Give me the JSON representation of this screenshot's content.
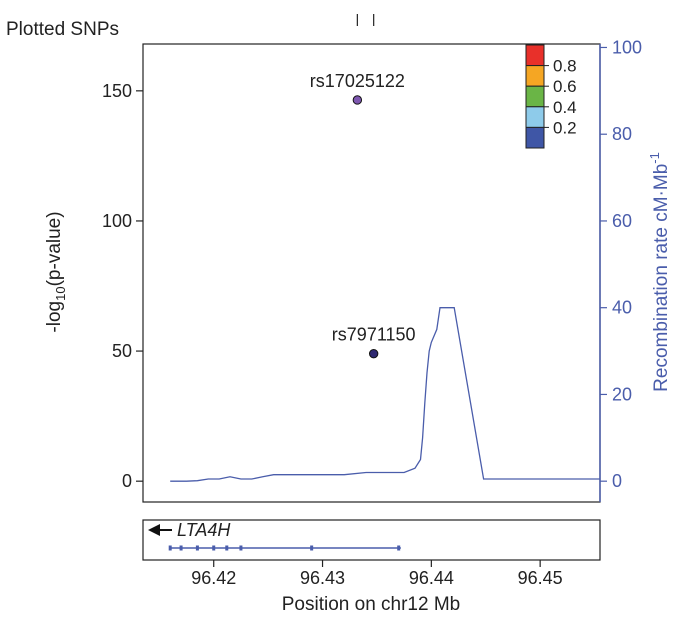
{
  "chart_data": {
    "type": "scatter",
    "title": "Plotted SNPs",
    "xlabel": "Position on chr12 Mb",
    "ylabel_prefix": "-log",
    "ylabel_sub": "10",
    "ylabel_suffix": "(p-value)",
    "y2label_main": "Recombination rate cM·Mb",
    "y2label_sup": "-1",
    "xlim": [
      96.4135,
      96.4555
    ],
    "ylim": [
      -8,
      168
    ],
    "y2lim": [
      -4.8,
      100.8
    ],
    "x_ticks": [
      96.42,
      96.43,
      96.44,
      96.45
    ],
    "x_tick_labels": [
      "96.42",
      "96.43",
      "96.44",
      "96.45"
    ],
    "y_ticks": [
      0,
      50,
      100,
      150
    ],
    "y_tick_labels": [
      "0",
      "50",
      "100",
      "150"
    ],
    "y2_ticks": [
      0,
      20,
      40,
      60,
      80,
      100
    ],
    "y2_tick_labels": [
      "0",
      "20",
      "40",
      "60",
      "80",
      "100"
    ],
    "plotted_snp_marks": [
      96.4332,
      96.4347
    ],
    "points": [
      {
        "snp": "rs17025122",
        "x": 96.4332,
        "y": 146.5,
        "color": "#7e57b0"
      },
      {
        "snp": "rs7971150",
        "x": 96.4347,
        "y": 49.0,
        "color": "#2e2870"
      }
    ],
    "recombination_rate": {
      "color": "#4a5dab",
      "x": [
        96.416,
        96.4175,
        96.4185,
        96.4195,
        96.4205,
        96.4215,
        96.4225,
        96.4235,
        96.4245,
        96.4255,
        96.4265,
        96.4275,
        96.4285,
        96.43,
        96.432,
        96.434,
        96.436,
        96.4375,
        96.4385,
        96.439,
        96.4392,
        96.4394,
        96.4396,
        96.4398,
        96.44,
        96.4405,
        96.4408,
        96.4421,
        96.4448,
        96.4555
      ],
      "y": [
        0.0,
        0.0,
        0.1,
        0.5,
        0.5,
        1.0,
        0.5,
        0.5,
        1.0,
        1.5,
        1.5,
        1.5,
        1.5,
        1.5,
        1.5,
        2.0,
        2.0,
        2.0,
        3.0,
        5.0,
        10.0,
        18.0,
        25.0,
        30.0,
        32.0,
        35.0,
        40.0,
        40.0,
        0.5,
        0.5
      ]
    },
    "ld_legend": {
      "labels": [
        "0.8",
        "0.6",
        "0.4",
        "0.2"
      ],
      "colors": [
        "#e8302a",
        "#f5a623",
        "#6ab546",
        "#8ecbea",
        "#3f56a6"
      ]
    },
    "gene": {
      "name": "LTA4H",
      "strand": "minus",
      "start": 96.416,
      "end": 96.4372,
      "exons": [
        96.416,
        96.417,
        96.4185,
        96.42,
        96.4212,
        96.4225,
        96.429,
        96.437
      ]
    }
  }
}
